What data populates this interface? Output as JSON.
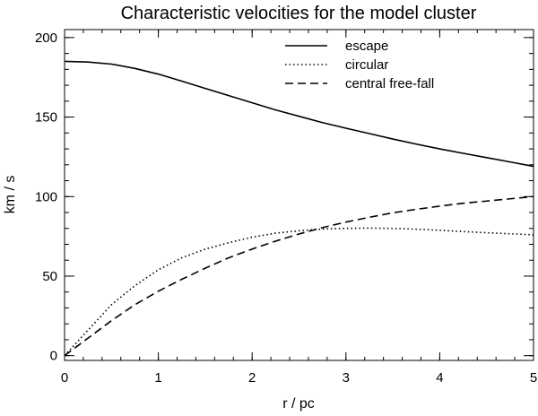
{
  "chart_data": {
    "type": "line",
    "title": "Characteristic velocities for the model cluster",
    "xlabel": "r / pc",
    "ylabel": "km / s",
    "xlim": [
      0,
      5
    ],
    "ylim": [
      -3,
      205
    ],
    "x_major_ticks": [
      0,
      1,
      2,
      3,
      4,
      5
    ],
    "x_tick_labels": [
      "0",
      "1",
      "2",
      "3",
      "4",
      "5"
    ],
    "x_minor_step": 0.2,
    "y_major_ticks": [
      0,
      50,
      100,
      150,
      200
    ],
    "y_tick_labels": [
      "0",
      "50",
      "100",
      "150",
      "200"
    ],
    "y_minor_step": 10,
    "grid": false,
    "legend_position": "top-right",
    "series": [
      {
        "name": "escape",
        "style": "solid",
        "x": [
          0,
          0.25,
          0.5,
          0.75,
          1,
          1.25,
          1.5,
          1.75,
          2,
          2.25,
          2.5,
          2.75,
          3,
          3.25,
          3.5,
          3.75,
          4,
          4.25,
          4.5,
          4.75,
          5
        ],
        "values": [
          185,
          184.6,
          183.3,
          180.6,
          177,
          172.6,
          168,
          163.5,
          159,
          154.5,
          150.5,
          146.5,
          143,
          139.6,
          136.2,
          133,
          130,
          127.2,
          124.5,
          121.8,
          119
        ]
      },
      {
        "name": "circular",
        "style": "dotted",
        "x": [
          0,
          0.25,
          0.5,
          0.75,
          1,
          1.25,
          1.5,
          1.75,
          2,
          2.25,
          2.5,
          2.75,
          3,
          3.25,
          3.5,
          3.75,
          4,
          4.25,
          4.5,
          4.75,
          5
        ],
        "values": [
          0,
          16,
          32,
          44,
          54,
          61.5,
          67,
          71,
          74.5,
          77,
          78.5,
          79.6,
          80,
          80.2,
          80,
          79.5,
          78.8,
          78,
          77.3,
          76.6,
          76
        ]
      },
      {
        "name": "central free-fall",
        "style": "dashed",
        "x": [
          0,
          0.25,
          0.5,
          0.75,
          1,
          1.25,
          1.5,
          1.75,
          2,
          2.25,
          2.5,
          2.75,
          3,
          3.25,
          3.5,
          3.75,
          4,
          4.25,
          4.5,
          4.75,
          5
        ],
        "values": [
          0,
          11,
          22,
          32,
          40.5,
          48,
          55,
          61.5,
          67,
          72,
          76.5,
          80.5,
          84,
          87,
          89.8,
          92,
          94,
          95.8,
          97.2,
          98.6,
          100
        ]
      }
    ]
  }
}
